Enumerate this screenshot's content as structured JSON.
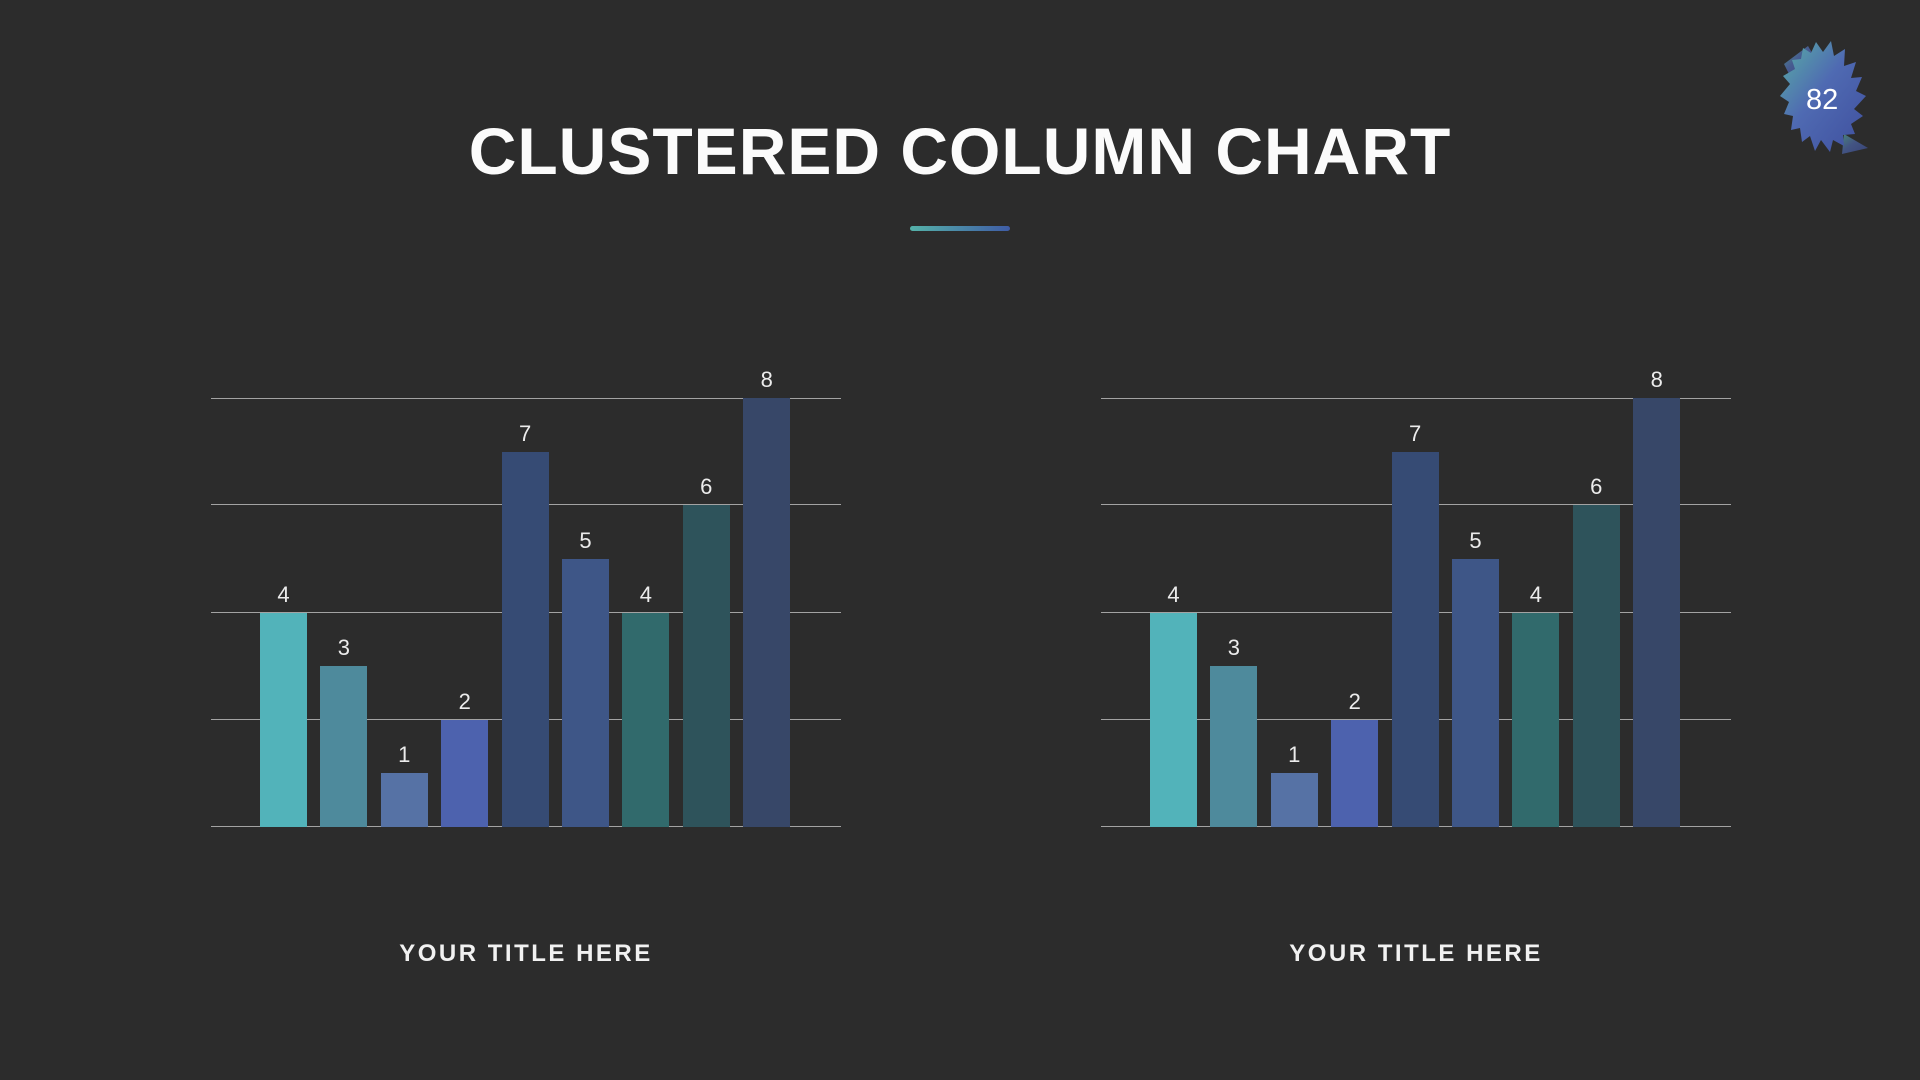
{
  "page": {
    "background": "#2c2c2c",
    "gridline_color": "#a3a3a3"
  },
  "header": {
    "title": "CLUSTERED COLUMN CHART",
    "underline_gradient": [
      "#55b2a9",
      "#3f5ca6"
    ]
  },
  "badge": {
    "number": "82",
    "gradient": [
      "#58b0a4",
      "#4f6ab2",
      "#3f4f9e"
    ]
  },
  "chart_data": [
    {
      "type": "bar",
      "title": "YOUR TITLE HERE",
      "values": [
        4,
        3,
        1,
        2,
        7,
        5,
        4,
        6,
        8
      ],
      "data_labels": [
        "4",
        "3",
        "1",
        "2",
        "7",
        "5",
        "4",
        "6",
        "8"
      ],
      "bar_colors": [
        "#52b3ba",
        "#4e8a9c",
        "#5672a5",
        "#4d62ae",
        "#364b74",
        "#3e5687",
        "#316a6c",
        "#2e535b",
        "#374768"
      ],
      "label_color": "#ececec",
      "xlabel": "",
      "ylabel": "",
      "ylim": [
        0,
        8
      ],
      "gridlines": [
        0,
        2,
        4,
        6,
        8
      ],
      "grid": true,
      "legend": false
    },
    {
      "type": "bar",
      "title": "YOUR TITLE HERE",
      "values": [
        4,
        3,
        1,
        2,
        7,
        5,
        4,
        6,
        8
      ],
      "data_labels": [
        "4",
        "3",
        "1",
        "2",
        "7",
        "5",
        "4",
        "6",
        "8"
      ],
      "bar_colors": [
        "#52b3ba",
        "#4e8a9c",
        "#5672a5",
        "#4d62ae",
        "#364b74",
        "#3e5687",
        "#316a6c",
        "#2e535b",
        "#374768"
      ],
      "label_color": "#ececec",
      "xlabel": "",
      "ylabel": "",
      "ylim": [
        0,
        8
      ],
      "gridlines": [
        0,
        2,
        4,
        6,
        8
      ],
      "grid": true,
      "legend": false
    }
  ]
}
